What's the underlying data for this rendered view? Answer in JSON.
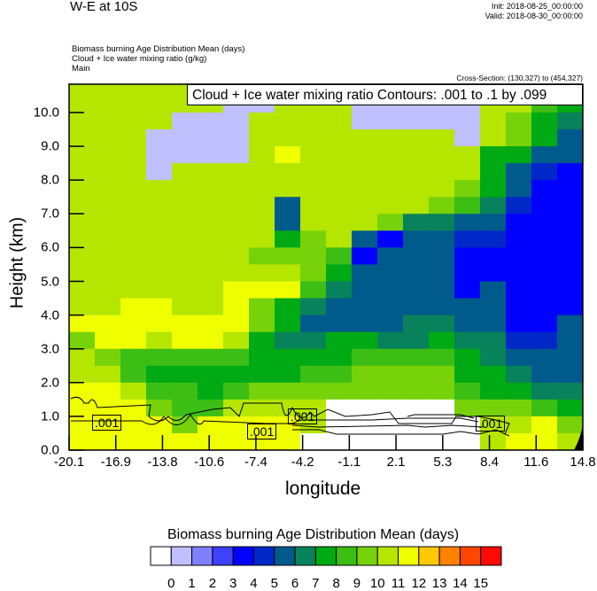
{
  "header": {
    "title": "W-E at 10S",
    "init": "Init: 2018-08-25_00:00:00",
    "valid": "Valid: 2018-08-30_00:00:00",
    "subtitles": [
      "Biomass burning Age Distribution Mean   (days)",
      "Cloud + Ice water mixing ratio   (g/kg)",
      "Main"
    ],
    "cross_section": "Cross-Section: (130,327) to (454,327)"
  },
  "chart_data": {
    "type": "heatmap",
    "title": "Biomass burning Age Distribution Mean (days) with Cloud + Ice water mixing ratio contours",
    "xlabel": "longitude",
    "ylabel": "Height (km)",
    "xlim": [
      -20.1,
      14.8
    ],
    "ylim": [
      0.0,
      10.84
    ],
    "x_ticks": [
      "-20.1",
      "-16.9",
      "-13.8",
      "-10.6",
      "-7.4",
      "-4.2",
      "-1.1",
      "2.1",
      "5.3",
      "8.4",
      "11.6",
      "14.8"
    ],
    "y_ticks": [
      "0.0",
      "1.0",
      "2.0",
      "3.0",
      "4.0",
      "5.0",
      "6.0",
      "7.0",
      "8.0",
      "9.0",
      "10.0"
    ],
    "contour_legend": "Cloud + Ice water mixing ratio Contours: .001 to .1 by .099",
    "contour_labels": [
      ".001",
      ".001",
      ".001",
      ".001"
    ],
    "grid_note_rows_top_to_bottom_height_km": [
      11.0,
      0.0
    ],
    "grid_columns": 20,
    "grid_values_days": [
      [
        10.5,
        10.5,
        10.5,
        10.5,
        10.5,
        10.5,
        10.5,
        10.5,
        10.5,
        10.5,
        10.5,
        10.5,
        10.5,
        10.5,
        10.5,
        10.5,
        10.5,
        10.5,
        9.5,
        8.5
      ],
      [
        10.5,
        10.5,
        10.5,
        10.5,
        10.5,
        10.5,
        0.5,
        0.5,
        10.5,
        10.5,
        10.5,
        0.5,
        0.5,
        0.5,
        0.5,
        0.5,
        10.5,
        10.5,
        8.5,
        7.5
      ],
      [
        10.5,
        10.5,
        10.5,
        10.5,
        0.5,
        0.5,
        0.5,
        10.5,
        10.5,
        10.5,
        10.5,
        0.5,
        0.5,
        0.5,
        0.5,
        0.5,
        10.5,
        9.5,
        7.5,
        6.5
      ],
      [
        10.5,
        10.5,
        10.5,
        0.5,
        0.5,
        0.5,
        0.5,
        10.5,
        10.5,
        10.5,
        10.5,
        10.5,
        10.5,
        10.5,
        10.5,
        0.5,
        10.5,
        9.5,
        7.5,
        5.5
      ],
      [
        10.5,
        10.5,
        10.5,
        0.5,
        0.5,
        0.5,
        0.5,
        10.5,
        11.5,
        10.5,
        10.5,
        10.5,
        10.5,
        10.5,
        10.5,
        10.5,
        7.5,
        7.5,
        5.5,
        5.5
      ],
      [
        10.5,
        10.5,
        10.5,
        0.5,
        10.5,
        10.5,
        10.5,
        10.5,
        10.5,
        10.5,
        10.5,
        10.5,
        10.5,
        10.5,
        10.5,
        10.5,
        7.5,
        5.5,
        4.5,
        3.5
      ],
      [
        10.5,
        10.5,
        10.5,
        10.5,
        10.5,
        10.5,
        10.5,
        10.5,
        10.5,
        10.5,
        10.5,
        10.5,
        10.5,
        10.5,
        10.5,
        9.5,
        7.5,
        5.5,
        3.5,
        3.5
      ],
      [
        10.5,
        10.5,
        10.5,
        10.5,
        10.5,
        10.5,
        10.5,
        10.5,
        5.5,
        10.5,
        10.5,
        10.5,
        10.5,
        10.5,
        9.5,
        8.5,
        6.5,
        4.5,
        3.5,
        3.5
      ],
      [
        10.5,
        10.5,
        10.5,
        10.5,
        10.5,
        10.5,
        10.5,
        10.5,
        5.5,
        10.5,
        10.5,
        10.5,
        9.5,
        6.5,
        6.5,
        5.5,
        5.5,
        3.5,
        3.5,
        3.5
      ],
      [
        10.5,
        10.5,
        10.5,
        10.5,
        10.5,
        10.5,
        10.5,
        10.5,
        7.5,
        9.5,
        10.5,
        5.5,
        3.5,
        5.5,
        5.5,
        4.5,
        4.5,
        3.5,
        3.5,
        3.5
      ],
      [
        10.5,
        10.5,
        10.5,
        10.5,
        10.5,
        10.5,
        10.5,
        9.5,
        9.5,
        9.5,
        8.5,
        3.5,
        5.5,
        5.5,
        5.5,
        3.5,
        3.5,
        3.5,
        3.5,
        3.5
      ],
      [
        10.5,
        10.5,
        10.5,
        10.5,
        10.5,
        10.5,
        10.5,
        10.5,
        10.5,
        9.5,
        7.5,
        5.5,
        5.5,
        5.5,
        5.5,
        3.5,
        3.5,
        3.5,
        3.5,
        3.5
      ],
      [
        10.5,
        10.5,
        10.5,
        10.5,
        10.5,
        10.5,
        11.5,
        11.5,
        11.5,
        8.5,
        6.5,
        5.5,
        5.5,
        5.5,
        5.5,
        3.5,
        5.5,
        3.5,
        3.5,
        3.5
      ],
      [
        10.5,
        10.5,
        11.5,
        11.5,
        10.5,
        10.5,
        11.5,
        9.5,
        7.5,
        6.5,
        5.5,
        5.5,
        5.5,
        5.5,
        5.5,
        5.5,
        5.5,
        3.5,
        3.5,
        3.5
      ],
      [
        11.5,
        11.5,
        11.5,
        11.5,
        11.5,
        11.5,
        11.5,
        9.5,
        7.5,
        5.5,
        5.5,
        5.5,
        5.5,
        6.5,
        6.5,
        5.5,
        5.5,
        3.5,
        3.5,
        5.5
      ],
      [
        9.5,
        11.5,
        11.5,
        10.5,
        11.5,
        11.5,
        10.5,
        7.5,
        6.5,
        6.5,
        7.5,
        7.5,
        6.5,
        6.5,
        7.5,
        6.5,
        6.5,
        4.5,
        4.5,
        5.5
      ],
      [
        10.5,
        9.5,
        8.5,
        8.5,
        8.5,
        8.5,
        8.5,
        7.5,
        7.5,
        7.5,
        7.5,
        8.5,
        8.5,
        8.5,
        8.5,
        7.5,
        6.5,
        5.5,
        5.5,
        5.5
      ],
      [
        10.5,
        10.5,
        8.5,
        7.5,
        7.5,
        7.5,
        7.5,
        7.5,
        7.5,
        8.5,
        8.5,
        9.5,
        9.5,
        9.5,
        9.5,
        7.5,
        7.5,
        6.5,
        5.5,
        5.5
      ],
      [
        11.5,
        11.5,
        10.5,
        8.5,
        8.5,
        7.5,
        8.5,
        9.5,
        9.5,
        9.5,
        9.5,
        9.5,
        9.5,
        9.5,
        9.5,
        8.5,
        7.5,
        7.5,
        6.5,
        6.5
      ],
      [
        11.5,
        11.5,
        11.5,
        9.5,
        8.5,
        8.5,
        10.5,
        10.5,
        10.5,
        10.5,
        -0.5,
        -0.5,
        -0.5,
        -0.5,
        -0.5,
        9.5,
        9.5,
        9.5,
        8.5,
        7.5
      ],
      [
        11.5,
        11.5,
        11.5,
        11.5,
        9.5,
        11.5,
        11.5,
        11.5,
        11.5,
        10.5,
        -0.5,
        -0.5,
        -0.5,
        -0.5,
        -0.5,
        -0.5,
        10.5,
        10.5,
        11.5,
        9.5
      ],
      [
        11.5,
        11.5,
        11.5,
        11.5,
        11.5,
        11.5,
        11.5,
        11.5,
        11.5,
        -0.5,
        -0.5,
        -0.5,
        -0.5,
        -0.5,
        -0.5,
        -0.5,
        10.5,
        11.5,
        11.5,
        10.5
      ]
    ],
    "colorbar": {
      "title": "Biomass burning Age Distribution Mean  (days)",
      "labels": [
        "0",
        "1",
        "2",
        "3",
        "4",
        "5",
        "6",
        "7",
        "8",
        "9",
        "10",
        "11",
        "12",
        "13",
        "14",
        "15"
      ],
      "colors": [
        "#ffffff",
        "#c0c0ff",
        "#8080ff",
        "#4040ff",
        "#0000ff",
        "#0028c8",
        "#005a8c",
        "#08825a",
        "#00aa14",
        "#3cbe14",
        "#78d20a",
        "#b4e600",
        "#f0ff00",
        "#ffc800",
        "#ff8200",
        "#ff4600",
        "#ff0a00"
      ]
    }
  }
}
